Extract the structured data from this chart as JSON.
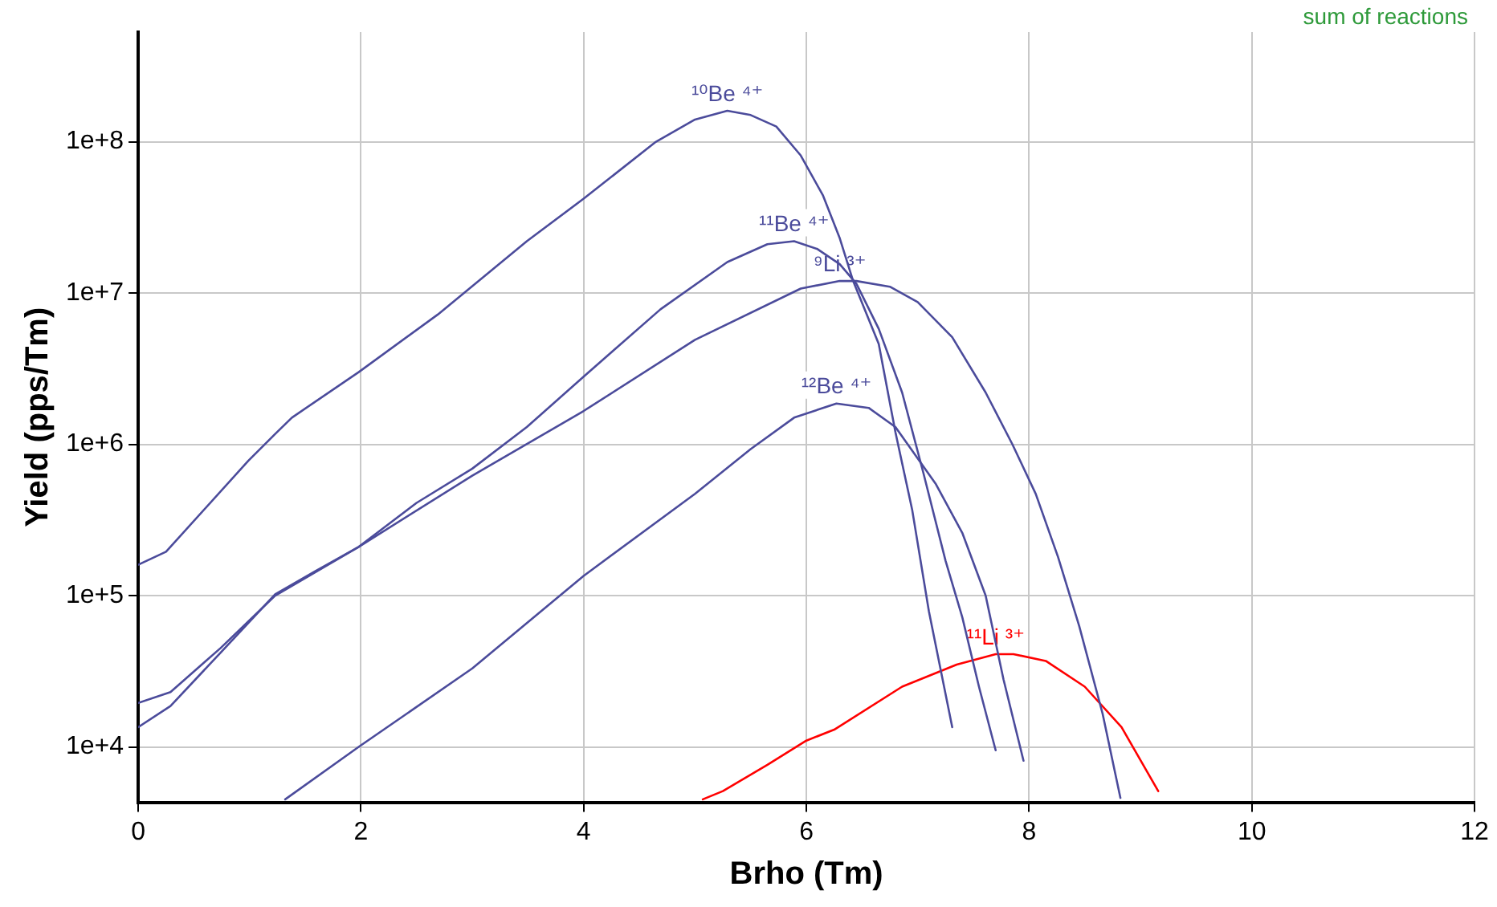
{
  "chart_data": {
    "type": "line",
    "xlabel": "Brho (Tm)",
    "ylabel": "Yield (pps/Tm)",
    "log": "y",
    "grid": true,
    "legend": false,
    "marker": "none",
    "line_style": "solid",
    "xlim": [
      0,
      12
    ],
    "xticks": [
      0,
      2,
      4,
      6,
      8,
      10,
      12
    ],
    "ylim": [
      4300,
      530000000
    ],
    "yticks": [
      {
        "value": 10000,
        "label": "1e+4"
      },
      {
        "value": 100000,
        "label": "1e+5"
      },
      {
        "value": 1000000,
        "label": "1e+6"
      },
      {
        "value": 10000000,
        "label": "1e+7"
      },
      {
        "value": 100000000,
        "label": "1e+8"
      }
    ],
    "annotations": [
      "sum of reactions"
    ],
    "series": [
      {
        "name": "¹⁰Be ⁴⁺",
        "color": "#4b4b9b",
        "x": [
          0,
          0.25,
          0.99,
          1.23,
          1.38,
          1.98,
          2.69,
          3.49,
          4.0,
          4.65,
          5.0,
          5.29,
          5.5,
          5.73,
          5.95,
          6.15,
          6.3,
          6.42,
          6.65,
          6.8,
          6.95,
          7.1,
          7.31
        ],
        "values": [
          160000,
          195000,
          780000,
          1170000,
          1500000,
          3000000,
          7200000,
          22000000,
          42000000,
          100000000,
          140000000,
          160000000,
          150000000,
          126000000,
          81000000,
          44000000,
          23000000,
          12000000,
          4600000,
          1200000,
          370000,
          79000,
          13500
        ]
      },
      {
        "name": "¹¹Be ⁴⁺",
        "color": "#4b4b9b",
        "x": [
          0,
          0.29,
          0.74,
          1.23,
          1.59,
          1.98,
          2.5,
          3.0,
          3.49,
          4.0,
          4.69,
          5.29,
          5.65,
          5.89,
          6.1,
          6.3,
          6.45,
          6.65,
          6.86,
          7.05,
          7.25,
          7.4,
          7.55,
          7.7
        ],
        "values": [
          13500,
          18600,
          42000,
          102000,
          145000,
          210000,
          410000,
          690000,
          1300000,
          2800000,
          7800000,
          16000000,
          21000000,
          22000000,
          19500000,
          15500000,
          11500000,
          5800000,
          2200000,
          650000,
          170000,
          72000,
          25000,
          9500
        ]
      },
      {
        "name": "⁹Li ³⁺",
        "color": "#4b4b9b",
        "x": [
          0,
          0.29,
          0.74,
          1.23,
          1.98,
          3.0,
          4.0,
          5.0,
          5.95,
          6.3,
          6.45,
          6.75,
          7.0,
          7.31,
          7.61,
          7.85,
          8.06,
          8.26,
          8.45,
          8.66,
          8.82
        ],
        "values": [
          19500,
          23000,
          45000,
          100000,
          210000,
          620000,
          1660000,
          4900000,
          10700000,
          12000000,
          12000000,
          11000000,
          8700000,
          5100000,
          2200000,
          1000000,
          470000,
          180000,
          63000,
          16600,
          4600
        ]
      },
      {
        "name": "¹²Be ⁴⁺",
        "color": "#4b4b9b",
        "x": [
          1.32,
          1.98,
          3.0,
          4.0,
          5.0,
          5.5,
          5.89,
          6.27,
          6.56,
          6.8,
          7.16,
          7.4,
          7.61,
          7.77,
          7.95
        ],
        "values": [
          4500,
          10000,
          33000,
          135000,
          470000,
          930000,
          1500000,
          1860000,
          1740000,
          1300000,
          550000,
          260000,
          100000,
          28000,
          8100
        ]
      },
      {
        "name": "¹¹Li ³⁺",
        "color": "#ff0000",
        "x": [
          5.07,
          5.25,
          5.65,
          6.0,
          6.25,
          6.86,
          7.35,
          7.7,
          7.86,
          8.15,
          8.5,
          8.83,
          9.16
        ],
        "values": [
          4500,
          5100,
          7600,
          11000,
          13000,
          25000,
          35000,
          41000,
          41000,
          37000,
          25000,
          13500,
          5100
        ]
      }
    ]
  }
}
